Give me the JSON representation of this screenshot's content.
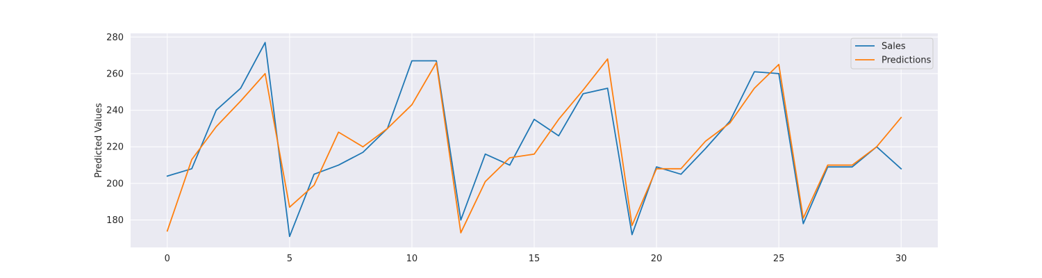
{
  "chart_data": {
    "type": "line",
    "title": "",
    "xlabel": "",
    "ylabel": "Predicted Values",
    "xlim": [
      -1.5,
      31.5
    ],
    "ylim": [
      165,
      282
    ],
    "xticks": [
      0,
      5,
      10,
      15,
      20,
      25,
      30
    ],
    "yticks": [
      180,
      200,
      220,
      240,
      260,
      280
    ],
    "grid": true,
    "legend_position": "top-right",
    "x": [
      0,
      1,
      2,
      3,
      4,
      5,
      6,
      7,
      8,
      9,
      10,
      11,
      12,
      13,
      14,
      15,
      16,
      17,
      18,
      19,
      20,
      21,
      22,
      23,
      24,
      25,
      26,
      27,
      28,
      29,
      30
    ],
    "series": [
      {
        "name": "Sales",
        "color": "#1f77b4",
        "values": [
          204,
          208,
          240,
          252,
          277,
          171,
          205,
          210,
          217,
          230,
          267,
          267,
          180,
          216,
          210,
          235,
          226,
          249,
          252,
          172,
          209,
          205,
          219,
          234,
          261,
          260,
          178,
          209,
          209,
          220,
          208
        ]
      },
      {
        "name": "Predictions",
        "color": "#ff7f0e",
        "values": [
          174,
          213,
          231,
          245,
          260,
          187,
          199,
          228,
          220,
          230,
          243,
          266,
          173,
          201,
          214,
          216,
          235,
          251,
          268,
          177,
          208,
          208,
          223,
          233,
          252,
          265,
          181,
          210,
          210,
          220,
          236
        ]
      }
    ]
  }
}
